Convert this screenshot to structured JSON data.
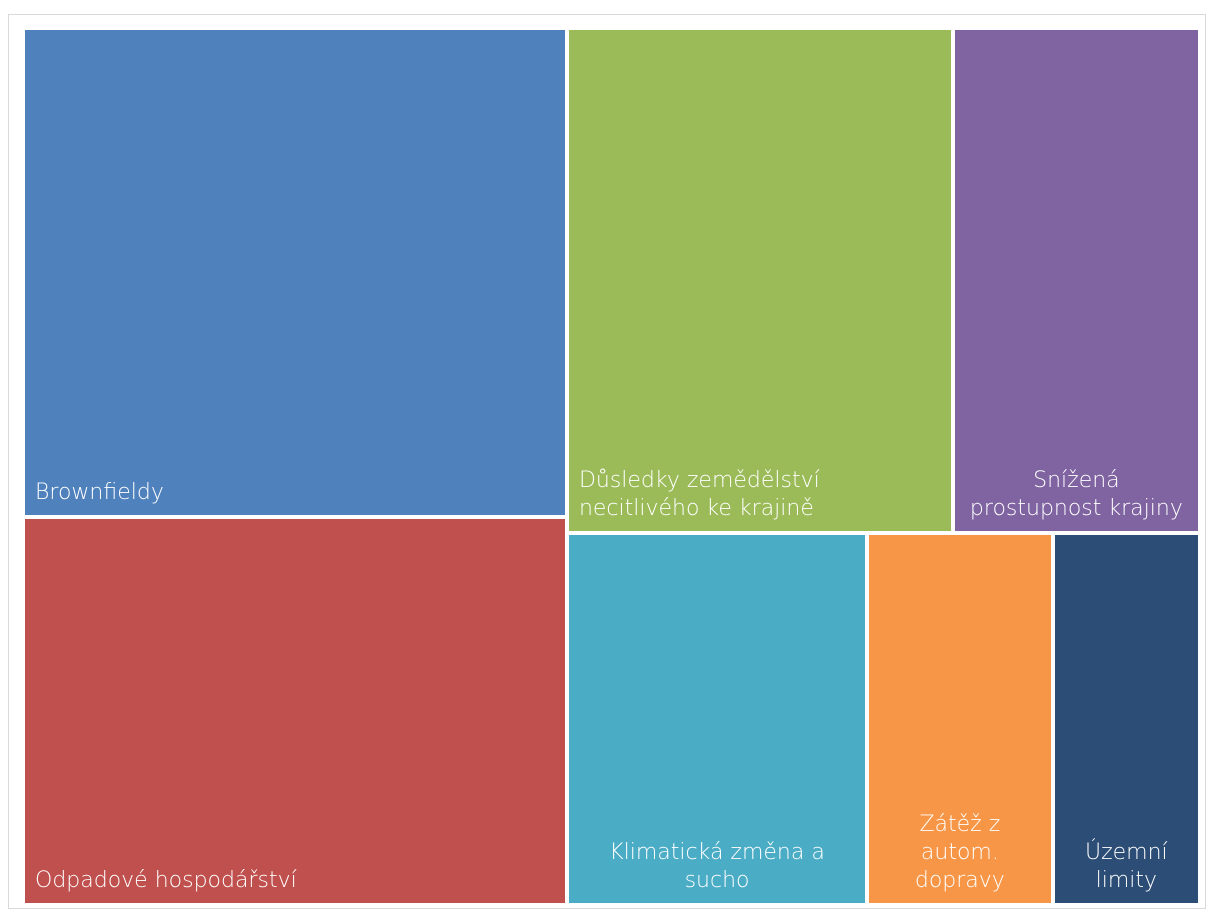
{
  "chart_data": {
    "type": "treemap",
    "categories": [
      "Brownfieldy",
      "Odpadové hospodářství",
      "Důsledky zemědělství necitlivého ke krajině",
      "Snížená prostupnost krajiny",
      "Klimatická změna a sucho",
      "Zátěž z autom. dopravy",
      "Územní limity"
    ],
    "values": [
      262,
      208,
      192,
      123,
      110,
      68,
      54
    ],
    "colors": [
      "#4f81bd",
      "#c0504d",
      "#9bbb59",
      "#8064a2",
      "#4bacc6",
      "#f79646",
      "#2c4d75"
    ]
  }
}
